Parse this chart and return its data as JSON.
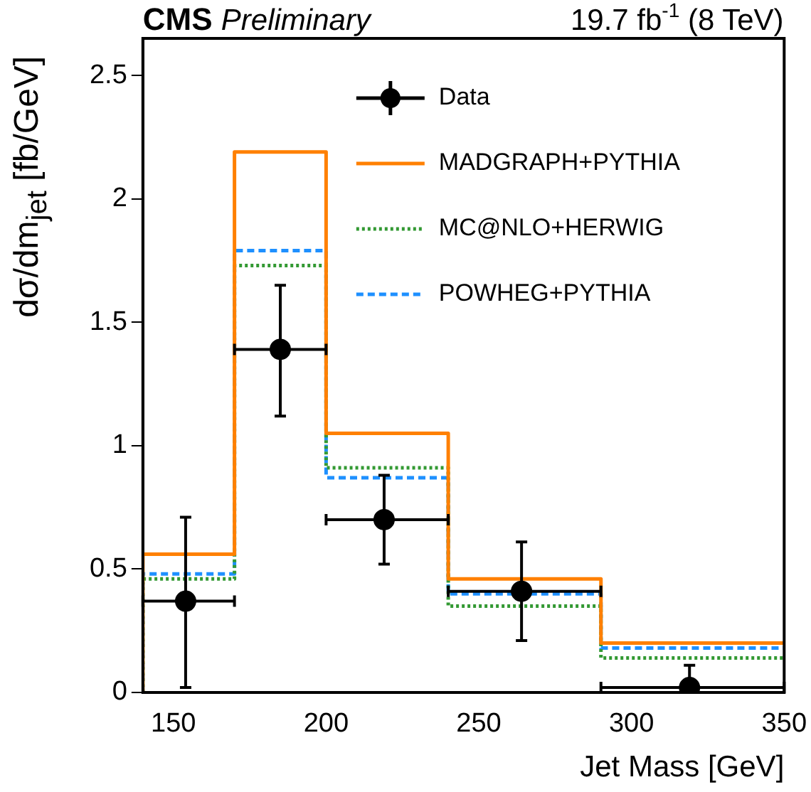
{
  "chart_data": {
    "type": "histogram",
    "title": "CMS Preliminary",
    "subtitle": "19.7 fb$^{-1}$ (8 TeV)",
    "xlabel": "Jet Mass [GeV]",
    "ylabel": "dσ/dm$_{jet}$ [fb/GeV]",
    "bins": [
      140,
      170,
      200,
      240,
      290,
      350
    ],
    "series": [
      {
        "name": "Data",
        "type": "scatter",
        "color": "#000000",
        "marker": "circle",
        "x": [
          154,
          185,
          219,
          264,
          319
        ],
        "values": [
          0.37,
          1.39,
          0.7,
          0.41,
          0.02
        ],
        "errors": [
          [
            0.02,
            0.71
          ],
          [
            1.12,
            1.65
          ],
          [
            0.52,
            0.88
          ],
          [
            0.21,
            0.61
          ],
          [
            0,
            0.11
          ]
        ],
        "xerrors": [
          [
            140,
            170
          ],
          [
            170,
            200
          ],
          [
            200,
            240
          ],
          [
            240,
            290
          ],
          [
            290,
            350
          ]
        ]
      },
      {
        "name": "MADGRAPH+PYTHIA",
        "color": "#ff8000",
        "line_style": "solid",
        "values": [
          0.56,
          2.19,
          1.05,
          0.46,
          0.2
        ]
      },
      {
        "name": "MC@NLO+HERWIG",
        "color": "#339933",
        "line_style": "dotted",
        "values": [
          0.46,
          1.73,
          0.91,
          0.35,
          0.14
        ]
      },
      {
        "name": "POWHEG+PYTHIA",
        "color": "#1e90ff",
        "line_style": "dashed",
        "values": [
          0.48,
          1.79,
          0.87,
          0.4,
          0.18
        ]
      }
    ],
    "xlim": [
      140,
      350
    ],
    "xticks": [
      150,
      200,
      250,
      300,
      350
    ],
    "ylim": [
      0,
      2.65
    ],
    "yticks": [
      0,
      0.5,
      1,
      1.5,
      2,
      2.5
    ],
    "grid": false,
    "legend": "top"
  }
}
